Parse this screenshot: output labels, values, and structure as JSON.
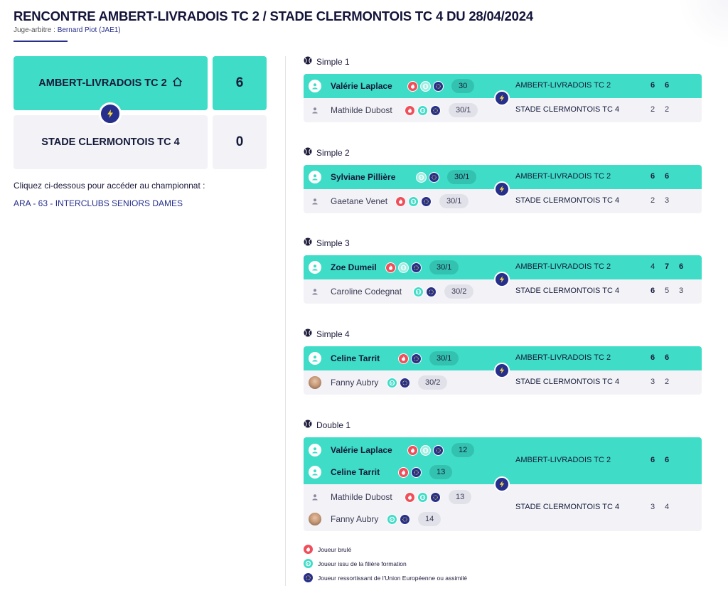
{
  "page": {
    "title": "RENCONTRE AMBERT-LIVRADOIS TC 2 / STADE CLERMONTOIS TC 4 DU 28/04/2024",
    "referee_label": "Juge-arbitre :",
    "referee_name": "Bernard Piot (JAE1)"
  },
  "summary": {
    "home_team": "AMBERT-LIVRADOIS TC 2",
    "home_score": "6",
    "away_team": "STADE CLERMONTOIS TC 4",
    "away_score": "0",
    "championship_intro": "Cliquez ci-dessous pour accéder au championnat :",
    "championship_link": "ARA - 63 - INTERCLUBS SENIORS DAMES"
  },
  "colors": {
    "accent_teal": "#3fdcc7",
    "navy": "#262f8c",
    "red": "#ef4f5a",
    "grey_bg": "#f3f3f7"
  },
  "matches": [
    {
      "label": "Simple 1",
      "winner": {
        "players": [
          {
            "name": "Valérie Laplace",
            "rank": "30",
            "badges": [
              "red",
              "teal",
              "blue"
            ]
          }
        ],
        "team": "AMBERT-LIVRADOIS TC 2",
        "sets": [
          {
            "v": "6",
            "won": true
          },
          {
            "v": "6",
            "won": true
          }
        ]
      },
      "loser": {
        "players": [
          {
            "name": "Mathilde Dubost",
            "rank": "30/1",
            "badges": [
              "red",
              "teal",
              "blue"
            ],
            "avatar": "plain"
          }
        ],
        "team": "STADE CLERMONTOIS TC 4",
        "sets": [
          {
            "v": "2",
            "won": false
          },
          {
            "v": "2",
            "won": false
          }
        ]
      }
    },
    {
      "label": "Simple 2",
      "winner": {
        "players": [
          {
            "name": "Sylviane Pillière",
            "rank": "30/1",
            "badges": [
              "teal",
              "blue"
            ]
          }
        ],
        "team": "AMBERT-LIVRADOIS TC 2",
        "sets": [
          {
            "v": "6",
            "won": true
          },
          {
            "v": "6",
            "won": true
          }
        ]
      },
      "loser": {
        "players": [
          {
            "name": "Gaetane Venet",
            "rank": "30/1",
            "badges": [
              "red",
              "teal",
              "blue"
            ],
            "avatar": "plain"
          }
        ],
        "team": "STADE CLERMONTOIS TC 4",
        "sets": [
          {
            "v": "2",
            "won": false
          },
          {
            "v": "3",
            "won": false
          }
        ]
      }
    },
    {
      "label": "Simple 3",
      "winner": {
        "players": [
          {
            "name": "Zoe Dumeil",
            "rank": "30/1",
            "badges": [
              "red",
              "teal",
              "blue"
            ]
          }
        ],
        "team": "AMBERT-LIVRADOIS TC 2",
        "sets": [
          {
            "v": "4",
            "won": false
          },
          {
            "v": "7",
            "won": true
          },
          {
            "v": "6",
            "won": true
          }
        ]
      },
      "loser": {
        "players": [
          {
            "name": "Caroline Codegnat",
            "rank": "30/2",
            "badges": [
              "teal",
              "blue"
            ],
            "avatar": "plain"
          }
        ],
        "team": "STADE CLERMONTOIS TC 4",
        "sets": [
          {
            "v": "6",
            "won": true
          },
          {
            "v": "5",
            "won": false
          },
          {
            "v": "3",
            "won": false
          }
        ]
      }
    },
    {
      "label": "Simple 4",
      "winner": {
        "players": [
          {
            "name": "Celine Tarrit",
            "rank": "30/1",
            "badges": [
              "red",
              "blue"
            ]
          }
        ],
        "team": "AMBERT-LIVRADOIS TC 2",
        "sets": [
          {
            "v": "6",
            "won": true
          },
          {
            "v": "6",
            "won": true
          }
        ]
      },
      "loser": {
        "players": [
          {
            "name": "Fanny Aubry",
            "rank": "30/2",
            "badges": [
              "teal",
              "blue"
            ],
            "avatar": "photo"
          }
        ],
        "team": "STADE CLERMONTOIS TC 4",
        "sets": [
          {
            "v": "3",
            "won": false
          },
          {
            "v": "2",
            "won": false
          }
        ]
      }
    },
    {
      "label": "Double 1",
      "winner": {
        "players": [
          {
            "name": "Valérie Laplace",
            "rank": "12",
            "badges": [
              "red",
              "teal",
              "blue"
            ]
          },
          {
            "name": "Celine Tarrit",
            "rank": "13",
            "badges": [
              "red",
              "blue"
            ]
          }
        ],
        "team": "AMBERT-LIVRADOIS TC 2",
        "sets": [
          {
            "v": "6",
            "won": true
          },
          {
            "v": "6",
            "won": true
          }
        ]
      },
      "loser": {
        "players": [
          {
            "name": "Mathilde Dubost",
            "rank": "13",
            "badges": [
              "red",
              "teal",
              "blue"
            ],
            "avatar": "plain"
          },
          {
            "name": "Fanny Aubry",
            "rank": "14",
            "badges": [
              "teal",
              "blue"
            ],
            "avatar": "photo"
          }
        ],
        "team": "STADE CLERMONTOIS TC 4",
        "sets": [
          {
            "v": "3",
            "won": false
          },
          {
            "v": "4",
            "won": false
          }
        ]
      }
    }
  ],
  "legend": [
    {
      "icon": "red",
      "text": "Joueur brulé"
    },
    {
      "icon": "teal",
      "text": "Joueur issu de la filière formation"
    },
    {
      "icon": "blue",
      "text": "Joueur ressortissant de l'Union Européenne ou assimilé"
    }
  ]
}
